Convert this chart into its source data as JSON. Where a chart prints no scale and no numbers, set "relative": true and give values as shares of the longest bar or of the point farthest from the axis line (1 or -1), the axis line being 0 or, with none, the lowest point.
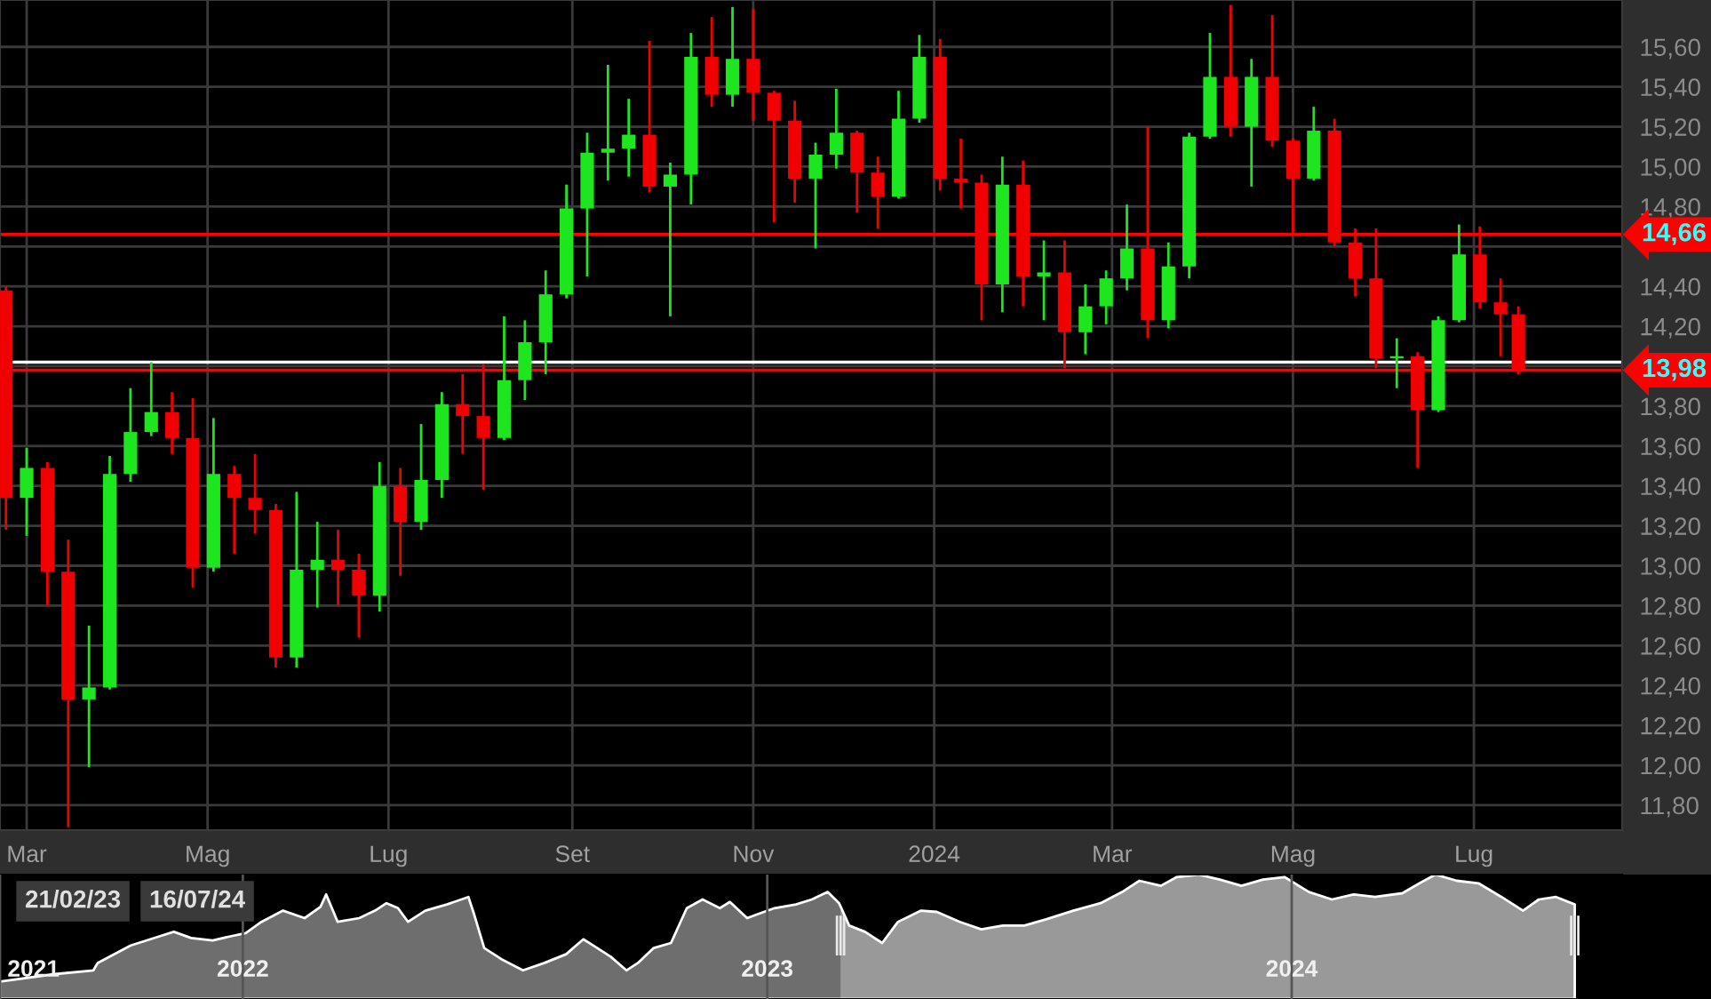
{
  "chart_data": [
    {
      "type": "candlestick",
      "x": [
        "2023-02-22",
        "2023-03-01",
        "2023-03-08",
        "2023-03-15",
        "2023-03-22",
        "2023-03-29",
        "2023-04-05",
        "2023-04-12",
        "2023-04-19",
        "2023-04-26",
        "2023-05-03",
        "2023-05-10",
        "2023-05-17",
        "2023-05-24",
        "2023-05-31",
        "2023-06-07",
        "2023-06-14",
        "2023-06-21",
        "2023-06-28",
        "2023-07-05",
        "2023-07-12",
        "2023-07-19",
        "2023-07-26",
        "2023-08-02",
        "2023-08-09",
        "2023-08-16",
        "2023-08-23",
        "2023-08-30",
        "2023-09-06",
        "2023-09-13",
        "2023-09-20",
        "2023-09-27",
        "2023-10-04",
        "2023-10-11",
        "2023-10-18",
        "2023-10-25",
        "2023-11-01",
        "2023-11-08",
        "2023-11-15",
        "2023-11-22",
        "2023-11-29",
        "2023-12-06",
        "2023-12-13",
        "2023-12-20",
        "2023-12-27",
        "2024-01-03",
        "2024-01-10",
        "2024-01-17",
        "2024-01-24",
        "2024-01-31",
        "2024-02-07",
        "2024-02-14",
        "2024-02-21",
        "2024-02-28",
        "2024-03-06",
        "2024-03-13",
        "2024-03-20",
        "2024-03-27",
        "2024-04-03",
        "2024-04-10",
        "2024-04-17",
        "2024-04-24",
        "2024-05-01",
        "2024-05-08",
        "2024-05-15",
        "2024-05-22",
        "2024-05-29",
        "2024-06-05",
        "2024-06-12",
        "2024-06-19",
        "2024-06-26",
        "2024-07-03",
        "2024-07-10",
        "2024-07-16"
      ],
      "ohlc": [
        [
          14.38,
          14.4,
          13.18,
          13.34
        ],
        [
          13.34,
          13.59,
          13.15,
          13.49
        ],
        [
          13.49,
          13.52,
          12.8,
          12.97
        ],
        [
          12.97,
          13.13,
          11.69,
          12.33
        ],
        [
          12.33,
          12.7,
          11.99,
          12.39
        ],
        [
          12.39,
          13.55,
          12.38,
          13.46
        ],
        [
          13.46,
          13.89,
          13.42,
          13.67
        ],
        [
          13.67,
          14.02,
          13.65,
          13.77
        ],
        [
          13.77,
          13.87,
          13.56,
          13.64
        ],
        [
          13.64,
          13.84,
          12.89,
          12.99
        ],
        [
          12.99,
          13.74,
          12.97,
          13.46
        ],
        [
          13.46,
          13.5,
          13.06,
          13.34
        ],
        [
          13.34,
          13.56,
          13.16,
          13.28
        ],
        [
          13.28,
          13.31,
          12.49,
          12.54
        ],
        [
          12.54,
          13.37,
          12.49,
          12.98
        ],
        [
          12.98,
          13.22,
          12.79,
          13.03
        ],
        [
          13.03,
          13.18,
          12.8,
          12.98
        ],
        [
          12.98,
          13.06,
          12.64,
          12.85
        ],
        [
          12.85,
          13.52,
          12.77,
          13.4
        ],
        [
          13.4,
          13.49,
          12.95,
          13.22
        ],
        [
          13.22,
          13.71,
          13.18,
          13.43
        ],
        [
          13.43,
          13.87,
          13.34,
          13.81
        ],
        [
          13.81,
          13.96,
          13.56,
          13.75
        ],
        [
          13.75,
          14.01,
          13.38,
          13.64
        ],
        [
          13.64,
          14.25,
          13.63,
          13.93
        ],
        [
          13.93,
          14.23,
          13.83,
          14.12
        ],
        [
          14.12,
          14.48,
          13.96,
          14.36
        ],
        [
          14.36,
          14.91,
          14.34,
          14.79
        ],
        [
          14.79,
          15.17,
          14.45,
          15.07
        ],
        [
          15.07,
          15.51,
          14.93,
          15.09
        ],
        [
          15.09,
          15.34,
          14.95,
          15.16
        ],
        [
          15.16,
          15.63,
          14.87,
          14.9
        ],
        [
          14.9,
          15.02,
          14.25,
          14.96
        ],
        [
          14.96,
          15.67,
          14.81,
          15.55
        ],
        [
          15.55,
          15.75,
          15.3,
          15.36
        ],
        [
          15.36,
          15.8,
          15.3,
          15.54
        ],
        [
          15.54,
          15.79,
          15.23,
          15.37
        ],
        [
          15.37,
          15.38,
          14.72,
          15.23
        ],
        [
          15.23,
          15.33,
          14.82,
          14.94
        ],
        [
          14.94,
          15.12,
          14.59,
          15.06
        ],
        [
          15.06,
          15.39,
          14.99,
          15.17
        ],
        [
          15.17,
          15.18,
          14.77,
          14.97
        ],
        [
          14.97,
          15.05,
          14.69,
          14.85
        ],
        [
          14.85,
          15.38,
          14.84,
          15.24
        ],
        [
          15.24,
          15.66,
          15.22,
          15.55
        ],
        [
          15.55,
          15.64,
          14.88,
          14.94
        ],
        [
          14.94,
          15.14,
          14.79,
          14.92
        ],
        [
          14.92,
          14.96,
          14.23,
          14.41
        ],
        [
          14.41,
          15.05,
          14.27,
          14.91
        ],
        [
          14.91,
          15.03,
          14.3,
          14.45
        ],
        [
          14.45,
          14.63,
          14.23,
          14.47
        ],
        [
          14.47,
          14.63,
          13.99,
          14.17
        ],
        [
          14.17,
          14.41,
          14.06,
          14.3
        ],
        [
          14.3,
          14.48,
          14.21,
          14.44
        ],
        [
          14.44,
          14.81,
          14.38,
          14.59
        ],
        [
          14.59,
          15.2,
          14.14,
          14.23
        ],
        [
          14.23,
          14.62,
          14.19,
          14.5
        ],
        [
          14.5,
          15.17,
          14.44,
          15.15
        ],
        [
          15.15,
          15.67,
          15.14,
          15.45
        ],
        [
          15.45,
          15.81,
          15.15,
          15.2
        ],
        [
          15.2,
          15.54,
          14.9,
          15.45
        ],
        [
          15.45,
          15.76,
          15.1,
          15.13
        ],
        [
          15.13,
          15.14,
          14.66,
          14.94
        ],
        [
          14.94,
          15.3,
          14.93,
          15.18
        ],
        [
          15.18,
          15.24,
          14.6,
          14.62
        ],
        [
          14.62,
          14.69,
          14.35,
          14.44
        ],
        [
          14.44,
          14.69,
          13.99,
          14.04
        ],
        [
          14.04,
          14.14,
          13.89,
          14.05
        ],
        [
          14.05,
          14.07,
          13.49,
          13.78
        ],
        [
          13.78,
          14.25,
          13.77,
          14.23
        ],
        [
          14.23,
          14.71,
          14.22,
          14.56
        ],
        [
          14.56,
          14.7,
          14.29,
          14.32
        ],
        [
          14.32,
          14.44,
          14.05,
          14.26
        ],
        [
          14.26,
          14.3,
          13.96,
          13.98
        ]
      ],
      "colors": [
        "#f00000",
        "#1ee61e",
        "#f00000",
        "#f00000",
        "#1ee61e",
        "#1ee61e",
        "#1ee61e",
        "#1ee61e",
        "#f00000",
        "#f00000",
        "#1ee61e",
        "#f00000",
        "#f00000",
        "#f00000",
        "#1ee61e",
        "#1ee61e",
        "#f00000",
        "#f00000",
        "#1ee61e",
        "#f00000",
        "#1ee61e",
        "#1ee61e",
        "#f00000",
        "#f00000",
        "#1ee61e",
        "#1ee61e",
        "#1ee61e",
        "#1ee61e",
        "#1ee61e",
        "#1ee61e",
        "#1ee61e",
        "#f00000",
        "#1ee61e",
        "#1ee61e",
        "#f00000",
        "#1ee61e",
        "#f00000",
        "#f00000",
        "#f00000",
        "#1ee61e",
        "#1ee61e",
        "#f00000",
        "#f00000",
        "#1ee61e",
        "#1ee61e",
        "#f00000",
        "#f00000",
        "#f00000",
        "#1ee61e",
        "#f00000",
        "#1ee61e",
        "#f00000",
        "#1ee61e",
        "#1ee61e",
        "#1ee61e",
        "#f00000",
        "#1ee61e",
        "#1ee61e",
        "#1ee61e",
        "#f00000",
        "#1ee61e",
        "#f00000",
        "#f00000",
        "#1ee61e",
        "#f00000",
        "#f00000",
        "#f00000",
        "#1ee61e",
        "#f00000",
        "#1ee61e",
        "#1ee61e",
        "#f00000",
        "#f00000",
        "#f00000"
      ],
      "xlim": [
        "2023-02-20",
        "2024-08-20"
      ],
      "xticks": [
        {
          "value": "2023-03-01",
          "label": "Mar"
        },
        {
          "value": "2023-05-01",
          "label": "Mag"
        },
        {
          "value": "2023-07-01",
          "label": "Lug"
        },
        {
          "value": "2023-09-01",
          "label": "Set"
        },
        {
          "value": "2023-11-01",
          "label": "Nov"
        },
        {
          "value": "2024-01-01",
          "label": "2024"
        },
        {
          "value": "2024-03-01",
          "label": "Mar"
        },
        {
          "value": "2024-05-01",
          "label": "Mag"
        },
        {
          "value": "2024-07-01",
          "label": "Lug"
        }
      ],
      "ylim": [
        11.675,
        15.835
      ],
      "yticks": [
        {
          "value": 11.8,
          "label": "11,80"
        },
        {
          "value": 12.0,
          "label": "12,00"
        },
        {
          "value": 12.2,
          "label": "12,20"
        },
        {
          "value": 12.4,
          "label": "12,40"
        },
        {
          "value": 12.6,
          "label": "12,60"
        },
        {
          "value": 12.8,
          "label": "12,80"
        },
        {
          "value": 13.0,
          "label": "13,00"
        },
        {
          "value": 13.2,
          "label": "13,20"
        },
        {
          "value": 13.4,
          "label": "13,40"
        },
        {
          "value": 13.6,
          "label": "13,60"
        },
        {
          "value": 13.8,
          "label": "13,80"
        },
        {
          "value": 14.0,
          "label": null
        },
        {
          "value": 14.2,
          "label": "14,20"
        },
        {
          "value": 14.4,
          "label": "14,40"
        },
        {
          "value": 14.6,
          "label": null
        },
        {
          "value": 14.8,
          "label": "14,80"
        },
        {
          "value": 15.0,
          "label": "15,00"
        },
        {
          "value": 15.2,
          "label": "15,20"
        },
        {
          "value": 15.4,
          "label": "15,40"
        },
        {
          "value": 15.6,
          "label": "15,60"
        }
      ],
      "grid": true,
      "ref_lines": [
        {
          "axis": "y",
          "value": 14.66,
          "label": "14,66",
          "color": "#ff0000"
        },
        {
          "axis": "y",
          "value": 14.02,
          "label": null,
          "color": "#ffffff"
        },
        {
          "axis": "y",
          "value": 13.98,
          "label": "13,98",
          "color": "#ff0000"
        }
      ]
    },
    {
      "type": "area",
      "relative": true,
      "x": [
        "2021-07-16",
        "2021-08-23",
        "2021-09-19",
        "2021-09-22",
        "2021-10-15",
        "2021-11-03",
        "2021-11-14",
        "2021-11-26",
        "2021-12-11",
        "2021-12-22",
        "2022-01-03",
        "2022-01-14",
        "2022-01-29",
        "2022-02-13",
        "2022-02-24",
        "2022-02-28",
        "2022-03-08",
        "2022-03-23",
        "2022-04-03",
        "2022-04-11",
        "2022-04-19",
        "2022-04-26",
        "2022-05-08",
        "2022-05-23",
        "2022-06-07",
        "2022-06-11",
        "2022-06-18",
        "2022-06-30",
        "2022-07-15",
        "2022-07-30",
        "2022-08-14",
        "2022-08-26",
        "2022-09-02",
        "2022-09-14",
        "2022-09-25",
        "2022-10-03",
        "2022-10-14",
        "2022-10-26",
        "2022-11-06",
        "2022-11-17",
        "2022-11-29",
        "2022-12-06",
        "2022-12-18",
        "2022-12-25",
        "2023-01-06",
        "2023-01-21",
        "2023-02-01",
        "2023-02-12",
        "2023-02-20",
        "2023-02-27",
        "2023-03-10",
        "2023-03-22",
        "2023-04-02",
        "2023-04-18",
        "2023-04-29",
        "2023-05-15",
        "2023-05-30",
        "2023-06-14",
        "2023-06-29",
        "2023-07-14",
        "2023-08-02",
        "2023-08-21",
        "2023-09-05",
        "2023-09-17",
        "2023-10-02",
        "2023-10-13",
        "2023-10-28",
        "2023-11-12",
        "2023-11-27",
        "2023-12-12",
        "2023-12-27",
        "2024-01-13",
        "2024-01-29",
        "2024-02-13",
        "2024-02-28",
        "2024-03-18",
        "2024-03-30",
        "2024-04-10",
        "2024-04-25",
        "2024-05-10",
        "2024-05-26",
        "2024-06-10",
        "2024-06-21",
        "2024-07-03",
        "2024-07-16"
      ],
      "series": [
        {
          "color": "#6e6e6e",
          "values": [
            0.14,
            0.2,
            0.23,
            0.29,
            0.43,
            0.5,
            0.54,
            0.49,
            0.47,
            0.5,
            0.53,
            0.62,
            0.71,
            0.65,
            0.74,
            0.84,
            0.62,
            0.65,
            0.71,
            0.77,
            0.73,
            0.62,
            0.71,
            0.76,
            0.82,
            0.68,
            0.41,
            0.32,
            0.23,
            0.29,
            0.36,
            0.48,
            0.43,
            0.34,
            0.23,
            0.29,
            0.41,
            0.45,
            0.73,
            0.8,
            0.73,
            0.78,
            0.65,
            0.68,
            0.73,
            0.76,
            0.8,
            0.86,
            0.77,
            0.59,
            0.54,
            0.45,
            0.62,
            0.71,
            0.7,
            0.62,
            0.56,
            0.59,
            0.59,
            0.64,
            0.71,
            0.77,
            0.86,
            0.95,
            0.91,
            0.98,
            1.0,
            0.96,
            0.91,
            0.96,
            0.98,
            0.86,
            0.8,
            0.84,
            0.82,
            0.85,
            0.93,
            1.0,
            0.95,
            0.93,
            0.82,
            0.71,
            0.8,
            0.82,
            0.76
          ]
        }
      ],
      "xlim": [
        "2021-07-16",
        "2024-08-18"
      ],
      "xticks": [
        {
          "value": "2021-07-16",
          "label": "2021"
        },
        {
          "value": "2022-01-01",
          "label": "2022"
        },
        {
          "value": "2023-01-01",
          "label": "2023"
        },
        {
          "value": "2024-01-01",
          "label": "2024"
        }
      ],
      "grid": "x",
      "bands": [
        {
          "axis": "x",
          "from": "2023-02-21",
          "to": "2024-07-16",
          "label": null,
          "color": "#ffffff"
        }
      ],
      "annotations": [
        "21/02/23",
        "16/07/24"
      ]
    }
  ]
}
